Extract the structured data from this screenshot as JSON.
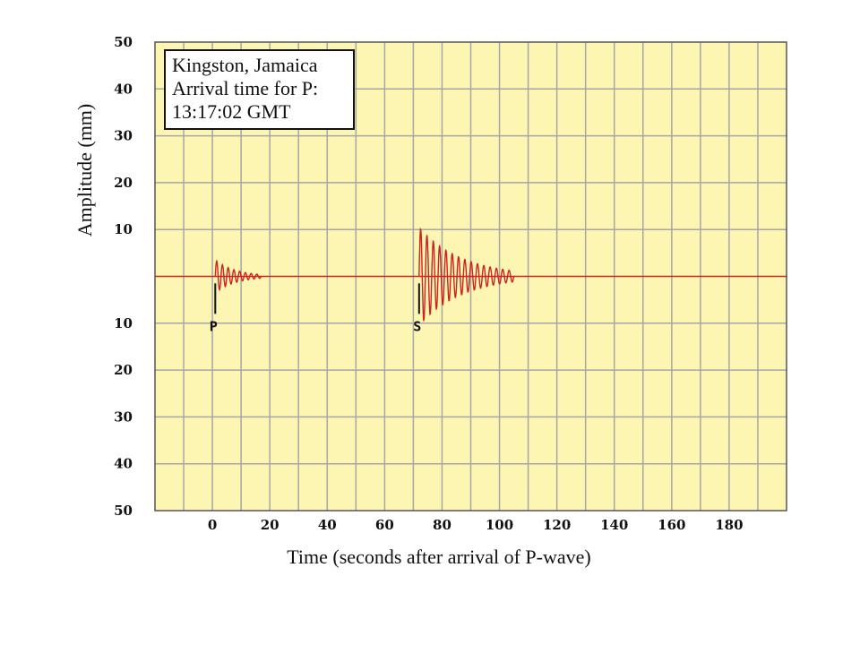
{
  "chart_data": {
    "type": "line",
    "xlabel": "Time (seconds after arrival of P-wave)",
    "ylabel": "Amplitude (mm)",
    "x_ticks": [
      0,
      20,
      40,
      60,
      80,
      100,
      120,
      140,
      160,
      180
    ],
    "y_ticks": [
      {
        "value": 50,
        "label": "50"
      },
      {
        "value": 40,
        "label": "40"
      },
      {
        "value": 30,
        "label": "30"
      },
      {
        "value": 20,
        "label": "20"
      },
      {
        "value": 10,
        "label": "10"
      },
      {
        "value": -10,
        "label": "10"
      },
      {
        "value": -20,
        "label": "20"
      },
      {
        "value": -30,
        "label": "30"
      },
      {
        "value": -40,
        "label": "40"
      },
      {
        "value": -50,
        "label": "50"
      }
    ],
    "xlim": [
      -20,
      200
    ],
    "ylim": [
      -50,
      50
    ],
    "grid": true,
    "colors": {
      "background": "#fdf6b2",
      "grid": "#a6a6a6",
      "trace": "#cc2222",
      "baseline": "#cc2222"
    },
    "baseline_value": 0,
    "info_box": {
      "lines": [
        "Kingston, Jamaica",
        "Arrival time for P:",
        "13:17:02 GMT"
      ],
      "placement": "top-left"
    },
    "markers": [
      {
        "label": "P",
        "x": 1,
        "y_from": -1.5,
        "y_to": -8
      },
      {
        "label": "S",
        "x": 72,
        "y_from": -1.5,
        "y_to": -8
      }
    ],
    "wave_packets": [
      {
        "name": "P-wave",
        "start": 1,
        "end": 17,
        "peak_amplitude": 3.5,
        "period": 2.0
      },
      {
        "name": "S-wave",
        "start": 72,
        "end": 105,
        "peak_amplitude": 10.5,
        "period": 2.2
      }
    ]
  }
}
